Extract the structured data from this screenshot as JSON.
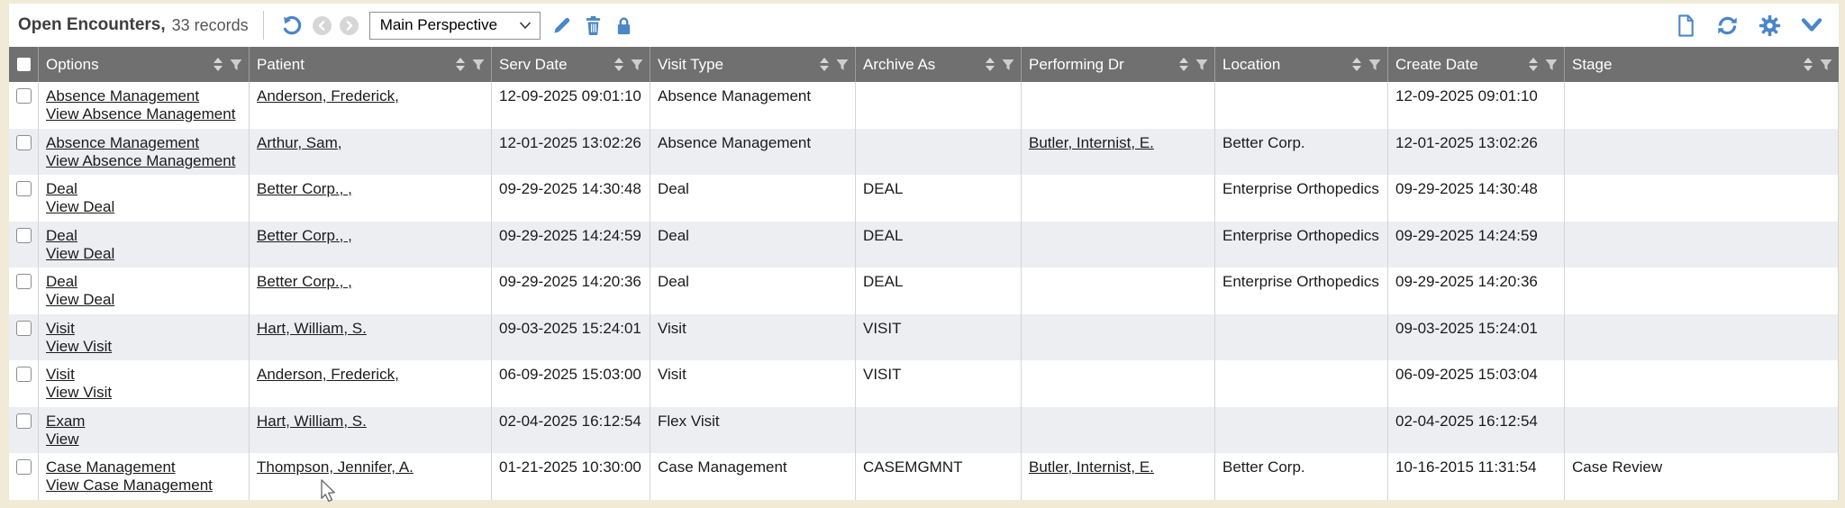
{
  "toolbar": {
    "title": "Open Encounters,",
    "records": "33 records",
    "perspective": "Main Perspective"
  },
  "icons": {
    "undo": "undo-circular-arrow",
    "back": "chevron-left-circle",
    "forward": "chevron-right-circle",
    "edit": "pencil",
    "delete": "trash",
    "lock": "padlock",
    "new_document": "blank-page",
    "refresh": "circular-arrows",
    "settings": "gear",
    "collapse": "chevron-down",
    "sort": "sort-arrows",
    "filter": "funnel",
    "select_dropdown": "chevron-down-small"
  },
  "colors": {
    "page_bg": "#f0ead7",
    "toolbar_bg": "#ffffff",
    "header_bg": "#707070",
    "header_text": "#ffffff",
    "row_bg": "#ffffff",
    "row_alt_bg": "#edeef2",
    "accent_blue": "#4a86c8",
    "disabled_gray": "#d6d6d6",
    "text": "#1b1b1b",
    "grid_line": "#d4d4d4"
  },
  "table": {
    "columns": [
      {
        "label": "Options",
        "sort": true,
        "filter": true
      },
      {
        "label": "Patient",
        "sort": true,
        "filter": true
      },
      {
        "label": "Serv Date",
        "sort": true,
        "filter": true
      },
      {
        "label": "Visit Type",
        "sort": true,
        "filter": true
      },
      {
        "label": "Archive As",
        "sort": true,
        "filter": true
      },
      {
        "label": "Performing Dr",
        "sort": true,
        "filter": true
      },
      {
        "label": "Location",
        "sort": true,
        "filter": true
      },
      {
        "label": "Create Date",
        "sort": true,
        "filter": true
      },
      {
        "label": "Stage",
        "sort": true,
        "filter": true
      }
    ],
    "rows": [
      {
        "options": [
          "Absence Management",
          "View Absence Management"
        ],
        "patient": "Anderson, Frederick,",
        "serv_date": "12-09-2025 09:01:10",
        "visit_type": "Absence Management",
        "archive_as": "",
        "performing_dr": "",
        "location": "",
        "create_date": "12-09-2025 09:01:10",
        "stage": ""
      },
      {
        "options": [
          "Absence Management",
          "View Absence Management"
        ],
        "patient": "Arthur, Sam,",
        "serv_date": "12-01-2025 13:02:26",
        "visit_type": "Absence Management",
        "archive_as": "",
        "performing_dr": "Butler, Internist, E.",
        "location": "Better Corp.",
        "create_date": "12-01-2025 13:02:26",
        "stage": ""
      },
      {
        "options": [
          "Deal",
          "View Deal"
        ],
        "patient": "Better Corp., ,",
        "serv_date": "09-29-2025 14:30:48",
        "visit_type": "Deal",
        "archive_as": "DEAL",
        "performing_dr": "",
        "location": "Enterprise Orthopedics",
        "create_date": "09-29-2025 14:30:48",
        "stage": ""
      },
      {
        "options": [
          "Deal",
          "View Deal"
        ],
        "patient": "Better Corp., ,",
        "serv_date": "09-29-2025 14:24:59",
        "visit_type": "Deal",
        "archive_as": "DEAL",
        "performing_dr": "",
        "location": "Enterprise Orthopedics",
        "create_date": "09-29-2025 14:24:59",
        "stage": ""
      },
      {
        "options": [
          "Deal",
          "View Deal"
        ],
        "patient": "Better Corp., ,",
        "serv_date": "09-29-2025 14:20:36",
        "visit_type": "Deal",
        "archive_as": "DEAL",
        "performing_dr": "",
        "location": "Enterprise Orthopedics",
        "create_date": "09-29-2025 14:20:36",
        "stage": ""
      },
      {
        "options": [
          "Visit",
          "View Visit"
        ],
        "patient": "Hart, William, S.",
        "serv_date": "09-03-2025 15:24:01",
        "visit_type": "Visit",
        "archive_as": "VISIT",
        "performing_dr": "",
        "location": "",
        "create_date": "09-03-2025 15:24:01",
        "stage": ""
      },
      {
        "options": [
          "Visit",
          "View Visit"
        ],
        "patient": "Anderson, Frederick,",
        "serv_date": "06-09-2025 15:03:00",
        "visit_type": "Visit",
        "archive_as": "VISIT",
        "performing_dr": "",
        "location": "",
        "create_date": "06-09-2025 15:03:04",
        "stage": ""
      },
      {
        "options": [
          "Exam",
          "View"
        ],
        "patient": "Hart, William, S.",
        "serv_date": "02-04-2025 16:12:54",
        "visit_type": "Flex Visit",
        "archive_as": "",
        "performing_dr": "",
        "location": "",
        "create_date": "02-04-2025 16:12:54",
        "stage": ""
      },
      {
        "options": [
          "Case Management",
          "View Case Management"
        ],
        "patient": "Thompson, Jennifer, A.",
        "serv_date": "01-21-2025 10:30:00",
        "visit_type": "Case Management",
        "archive_as": "CASEMGMNT",
        "performing_dr": "Butler, Internist, E.",
        "location": "Better Corp.",
        "create_date": "10-16-2015 11:31:54",
        "stage": "Case Review"
      }
    ]
  }
}
